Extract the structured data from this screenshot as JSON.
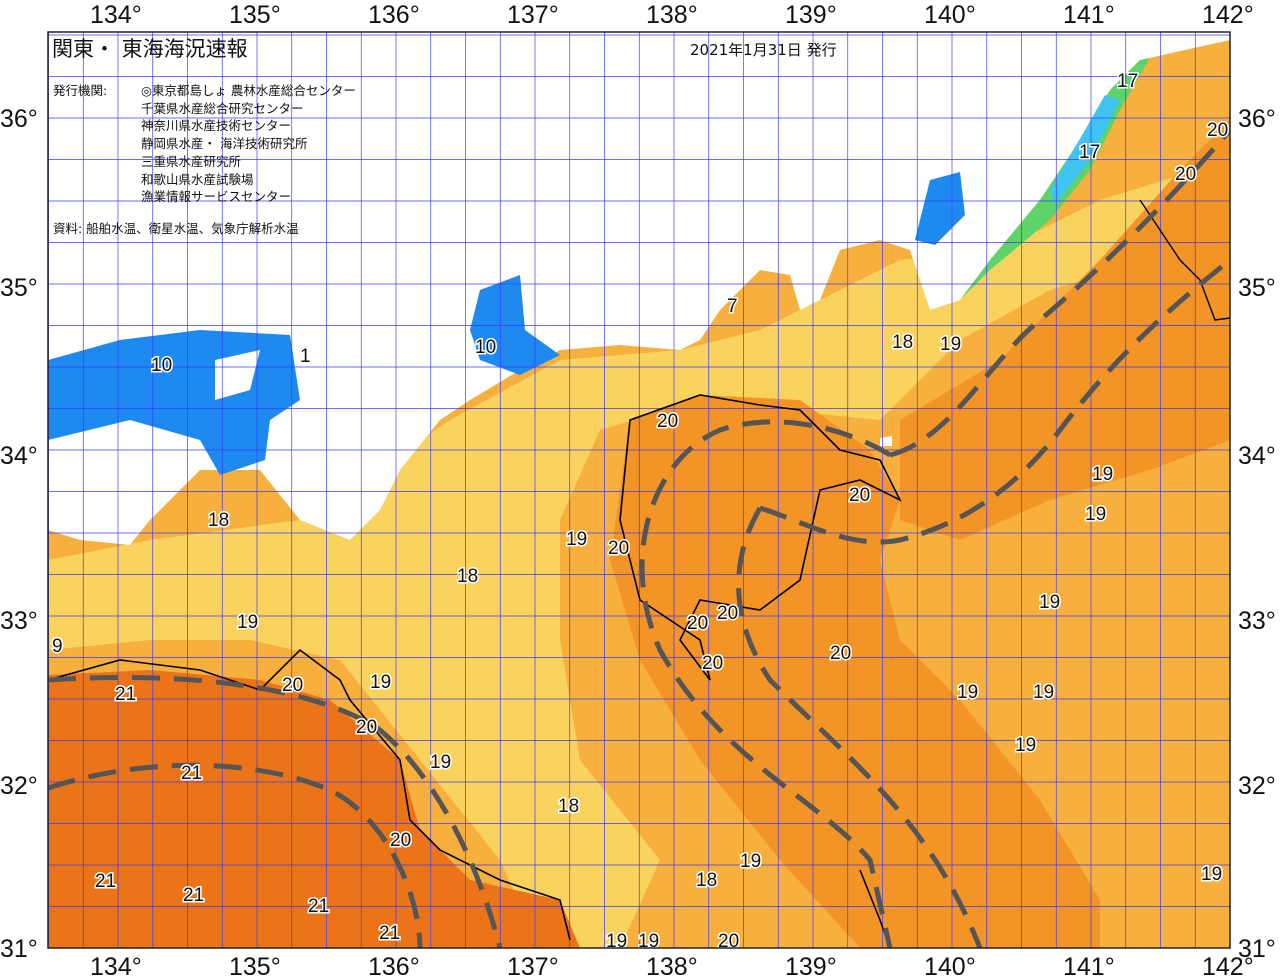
{
  "header": {
    "title": "関東・ 東海海況速報",
    "issue_date": "2021年1月31日 発行",
    "issuers_label": "発行機関:",
    "issuers": [
      "◎東京都島しょ 農林水産総合センター",
      "千葉県水産総合研究センター",
      "神奈川県水産技術センター",
      "静岡県水産・ 海洋技術研究所",
      "三重県水産研究所",
      "和歌山県水産試験場",
      "漁業情報サービスセンター"
    ],
    "sources": "資料: 船舶水温、衛星水温、気象庁解析水温"
  },
  "axes": {
    "longitude_ticks": [
      "134°",
      "135°",
      "136°",
      "137°",
      "138°",
      "139°",
      "140°",
      "141°",
      "142°"
    ],
    "latitude_ticks": [
      "36°",
      "35°",
      "34°",
      "33°",
      "32°",
      "31°"
    ]
  },
  "colors": {
    "warm_21": "#ec7418",
    "warm_20": "#f39426",
    "mid_19": "#f7b03e",
    "cool_18": "#fad35e",
    "cool_17": "#f0ef7a",
    "green_band": "#5ed36a",
    "cyan_band": "#3fc3f0",
    "blue_band": "#1e8af0",
    "grid": "#3b3bff",
    "kuroshio_axis": "#555555"
  },
  "contour_labels": [
    "21",
    "21",
    "21",
    "21",
    "21",
    "21",
    "20",
    "20",
    "20",
    "19",
    "19",
    "19",
    "18",
    "9",
    "10",
    "1",
    "10",
    "7",
    "18",
    "19",
    "20",
    "20",
    "20",
    "20",
    "20",
    "20",
    "20",
    "18",
    "19",
    "19",
    "19",
    "19",
    "19",
    "19",
    "19",
    "18",
    "19",
    "18",
    "19",
    "19",
    "20",
    "19",
    "17",
    "17",
    "20",
    "20"
  ]
}
